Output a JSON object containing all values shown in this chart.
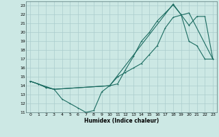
{
  "xlabel": "Humidex (Indice chaleur)",
  "xlim": [
    -0.5,
    23.5
  ],
  "ylim": [
    11,
    23.5
  ],
  "yticks": [
    11,
    12,
    13,
    14,
    15,
    16,
    17,
    18,
    19,
    20,
    21,
    22,
    23
  ],
  "xticks": [
    0,
    1,
    2,
    3,
    4,
    5,
    6,
    7,
    8,
    9,
    10,
    11,
    12,
    13,
    14,
    15,
    16,
    17,
    18,
    19,
    20,
    21,
    22,
    23
  ],
  "bg_color": "#cce8e4",
  "grid_color": "#aacccc",
  "line_color": "#1a6b60",
  "line1_x": [
    0,
    1,
    2,
    3,
    4,
    5,
    6,
    7,
    8,
    9,
    10,
    11,
    12,
    13,
    14,
    15,
    16,
    17,
    18,
    19,
    20,
    21,
    22,
    23
  ],
  "line1_y": [
    14.5,
    14.2,
    13.8,
    13.6,
    12.5,
    12.0,
    11.5,
    11.0,
    11.2,
    13.3,
    14.0,
    14.2,
    15.8,
    17.3,
    19.0,
    20.0,
    21.3,
    22.2,
    23.1,
    22.0,
    19.0,
    18.5,
    17.0,
    17.0
  ],
  "line2_x": [
    0,
    1,
    2,
    3,
    10,
    11,
    12,
    13,
    14,
    15,
    16,
    17,
    18,
    20,
    23
  ],
  "line2_y": [
    14.5,
    14.2,
    13.8,
    13.6,
    14.0,
    15.0,
    15.5,
    16.0,
    16.5,
    17.5,
    18.5,
    20.5,
    21.7,
    22.2,
    17.0
  ],
  "line3_x": [
    0,
    3,
    10,
    18,
    20,
    21,
    22,
    23
  ],
  "line3_y": [
    14.5,
    13.6,
    14.0,
    23.2,
    20.8,
    21.8,
    21.8,
    17.0
  ]
}
